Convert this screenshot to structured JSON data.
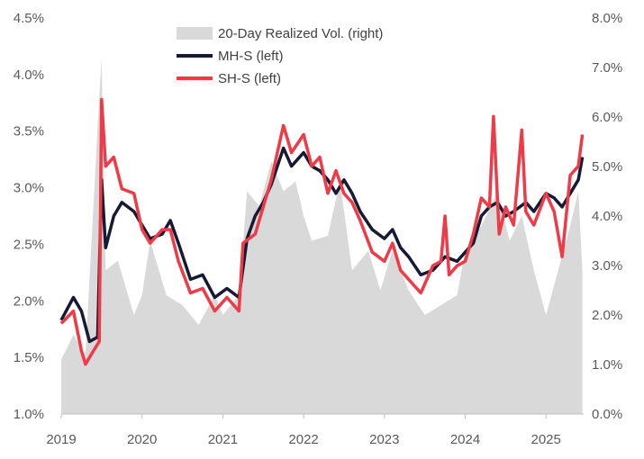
{
  "chart_data": {
    "type": "line",
    "title": "",
    "xlabel": "",
    "ylabel_left": "",
    "ylabel_right": "",
    "x_ticks": [
      "2019",
      "2020",
      "2021",
      "2022",
      "2023",
      "2024",
      "2025"
    ],
    "x_range": [
      2019,
      2025.5
    ],
    "left_axis": {
      "range": [
        1.0,
        4.5
      ],
      "ticks": [
        "1.0%",
        "1.5%",
        "2.0%",
        "2.5%",
        "3.0%",
        "3.5%",
        "4.0%",
        "4.5%"
      ]
    },
    "right_axis": {
      "range": [
        0,
        8
      ],
      "ticks": [
        "0.0%",
        "1.0%",
        "2.0%",
        "3.0%",
        "4.0%",
        "5.0%",
        "6.0%",
        "7.0%",
        "8.0%"
      ]
    },
    "grid": false,
    "legend_position": "top-center",
    "colors": {
      "vol": "#d9d9d9",
      "mh": "#161a33",
      "sh": "#ef3a47"
    },
    "series": [
      {
        "name": "20-Day Realized Vol. (right)",
        "type": "area",
        "axis": "right",
        "x": [
          2019.0,
          2019.15,
          2019.3,
          2019.45,
          2019.5,
          2019.55,
          2019.7,
          2019.9,
          2020.0,
          2020.1,
          2020.3,
          2020.5,
          2020.7,
          2020.9,
          2021.0,
          2021.2,
          2021.3,
          2021.45,
          2021.6,
          2021.75,
          2021.9,
          2022.0,
          2022.1,
          2022.3,
          2022.45,
          2022.6,
          2022.8,
          2022.95,
          2023.1,
          2023.3,
          2023.5,
          2023.7,
          2023.9,
          2024.0,
          2024.2,
          2024.4,
          2024.55,
          2024.7,
          2024.85,
          2025.0,
          2025.15,
          2025.3,
          2025.4,
          2025.45
        ],
        "values": [
          1.1,
          1.6,
          1.2,
          5.8,
          7.2,
          2.9,
          3.1,
          2.0,
          2.4,
          3.5,
          2.4,
          2.2,
          1.8,
          2.4,
          2.0,
          2.4,
          4.5,
          4.2,
          5.1,
          4.5,
          4.7,
          4.0,
          3.5,
          3.6,
          4.7,
          2.9,
          3.3,
          2.5,
          3.3,
          2.5,
          2.0,
          2.2,
          2.4,
          3.3,
          3.8,
          4.5,
          3.5,
          4.0,
          2.9,
          2.0,
          2.9,
          3.8,
          4.5,
          2.9
        ]
      },
      {
        "name": "MH-S (left)",
        "type": "line",
        "axis": "left",
        "x": [
          2019.0,
          2019.15,
          2019.25,
          2019.35,
          2019.45,
          2019.5,
          2019.55,
          2019.65,
          2019.75,
          2019.9,
          2020.0,
          2020.1,
          2020.25,
          2020.35,
          2020.45,
          2020.6,
          2020.75,
          2020.9,
          2021.05,
          2021.2,
          2021.3,
          2021.4,
          2021.5,
          2021.6,
          2021.75,
          2021.85,
          2022.0,
          2022.1,
          2022.2,
          2022.3,
          2022.4,
          2022.5,
          2022.6,
          2022.7,
          2022.85,
          2023.0,
          2023.1,
          2023.2,
          2023.3,
          2023.45,
          2023.6,
          2023.75,
          2023.9,
          2024.0,
          2024.1,
          2024.2,
          2024.3,
          2024.4,
          2024.5,
          2024.6,
          2024.75,
          2024.85,
          2025.0,
          2025.1,
          2025.2,
          2025.3,
          2025.4,
          2025.45
        ],
        "values": [
          1.83,
          2.03,
          1.91,
          1.64,
          1.68,
          3.07,
          2.47,
          2.75,
          2.87,
          2.79,
          2.67,
          2.55,
          2.59,
          2.71,
          2.51,
          2.19,
          2.23,
          2.03,
          2.11,
          2.03,
          2.55,
          2.75,
          2.87,
          3.03,
          3.35,
          3.19,
          3.31,
          3.19,
          3.15,
          3.07,
          2.95,
          3.07,
          2.95,
          2.79,
          2.63,
          2.55,
          2.63,
          2.47,
          2.39,
          2.23,
          2.27,
          2.39,
          2.35,
          2.43,
          2.51,
          2.75,
          2.83,
          2.87,
          2.75,
          2.79,
          2.87,
          2.79,
          2.95,
          2.91,
          2.83,
          2.95,
          3.07,
          3.27
        ]
      },
      {
        "name": "SH-S (left)",
        "type": "line",
        "axis": "left",
        "x": [
          2019.0,
          2019.15,
          2019.25,
          2019.3,
          2019.4,
          2019.47,
          2019.5,
          2019.55,
          2019.65,
          2019.75,
          2019.9,
          2020.0,
          2020.1,
          2020.25,
          2020.35,
          2020.45,
          2020.6,
          2020.75,
          2020.9,
          2021.05,
          2021.2,
          2021.25,
          2021.4,
          2021.5,
          2021.6,
          2021.75,
          2021.85,
          2022.0,
          2022.1,
          2022.2,
          2022.3,
          2022.4,
          2022.5,
          2022.6,
          2022.7,
          2022.85,
          2023.0,
          2023.1,
          2023.2,
          2023.3,
          2023.45,
          2023.6,
          2023.7,
          2023.75,
          2023.8,
          2023.9,
          2024.0,
          2024.1,
          2024.2,
          2024.3,
          2024.35,
          2024.42,
          2024.5,
          2024.6,
          2024.7,
          2024.75,
          2024.85,
          2025.0,
          2025.1,
          2025.2,
          2025.3,
          2025.4,
          2025.45
        ],
        "values": [
          1.8,
          1.91,
          1.56,
          1.44,
          1.56,
          1.64,
          3.78,
          3.19,
          3.27,
          2.99,
          2.95,
          2.63,
          2.51,
          2.63,
          2.63,
          2.35,
          2.07,
          2.11,
          1.91,
          2.03,
          1.91,
          2.51,
          2.59,
          2.83,
          3.07,
          3.55,
          3.31,
          3.47,
          3.19,
          3.27,
          2.95,
          3.15,
          2.95,
          2.87,
          2.71,
          2.43,
          2.35,
          2.51,
          2.27,
          2.19,
          2.07,
          2.31,
          2.35,
          2.75,
          2.23,
          2.31,
          2.35,
          2.59,
          2.91,
          2.83,
          3.63,
          2.59,
          2.83,
          2.67,
          3.51,
          2.79,
          2.67,
          2.95,
          2.79,
          2.39,
          3.11,
          3.19,
          3.47
        ]
      }
    ]
  }
}
